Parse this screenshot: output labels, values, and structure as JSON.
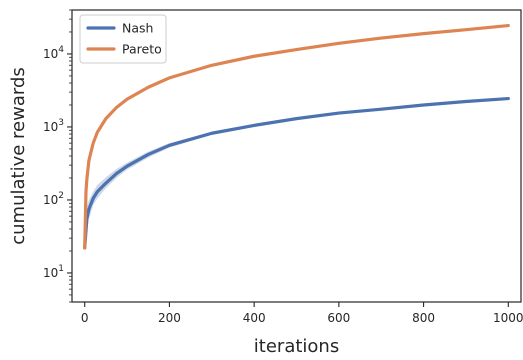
{
  "chart_data": {
    "type": "line",
    "title": "",
    "xlabel": "iterations",
    "ylabel": "cumulative rewards",
    "xlim": [
      -30,
      1030
    ],
    "ylim": [
      4,
      40000
    ],
    "yscale": "log",
    "grid": false,
    "legend_position": "top-left",
    "xticks": [
      0,
      200,
      400,
      600,
      800,
      1000
    ],
    "yticks": [
      {
        "value": 10,
        "base": "10",
        "exp": "1"
      },
      {
        "value": 100,
        "base": "10",
        "exp": "2"
      },
      {
        "value": 1000,
        "base": "10",
        "exp": "3"
      },
      {
        "value": 10000,
        "base": "10",
        "exp": "4"
      }
    ],
    "series": [
      {
        "name": "Nash",
        "color": "#4c72b0",
        "x": [
          0,
          5,
          10,
          20,
          30,
          50,
          75,
          100,
          150,
          200,
          300,
          400,
          500,
          600,
          700,
          800,
          900,
          1000
        ],
        "y": [
          22,
          55,
          75,
          105,
          130,
          170,
          230,
          290,
          420,
          560,
          820,
          1050,
          1300,
          1550,
          1750,
          2000,
          2230,
          2450
        ],
        "band_low": [
          20,
          35,
          55,
          85,
          105,
          145,
          200,
          260,
          380,
          520,
          780,
          1000,
          1250,
          1500,
          1700,
          1950,
          2180,
          2400
        ],
        "band_high": [
          25,
          80,
          100,
          130,
          160,
          205,
          265,
          325,
          460,
          600,
          860,
          1100,
          1350,
          1600,
          1800,
          2050,
          2280,
          2500
        ]
      },
      {
        "name": "Pareto",
        "color": "#dd8452",
        "x": [
          0,
          3,
          5,
          10,
          20,
          30,
          50,
          75,
          100,
          150,
          200,
          300,
          400,
          500,
          600,
          700,
          800,
          900,
          1000
        ],
        "y": [
          22,
          130,
          190,
          350,
          600,
          850,
          1300,
          1850,
          2400,
          3500,
          4700,
          7000,
          9300,
          11500,
          14000,
          16500,
          19000,
          21500,
          24500
        ]
      }
    ]
  }
}
